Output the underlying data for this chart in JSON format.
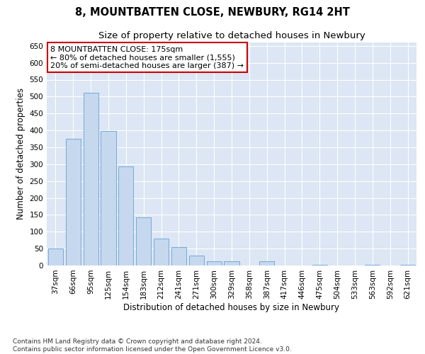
{
  "title": "8, MOUNTBATTEN CLOSE, NEWBURY, RG14 2HT",
  "subtitle": "Size of property relative to detached houses in Newbury",
  "xlabel": "Distribution of detached houses by size in Newbury",
  "ylabel": "Number of detached properties",
  "categories": [
    "37sqm",
    "66sqm",
    "95sqm",
    "125sqm",
    "154sqm",
    "183sqm",
    "212sqm",
    "241sqm",
    "271sqm",
    "300sqm",
    "329sqm",
    "358sqm",
    "387sqm",
    "417sqm",
    "446sqm",
    "475sqm",
    "504sqm",
    "533sqm",
    "563sqm",
    "592sqm",
    "621sqm"
  ],
  "values": [
    50,
    375,
    512,
    398,
    293,
    142,
    80,
    55,
    30,
    12,
    12,
    0,
    12,
    0,
    0,
    3,
    0,
    0,
    3,
    0,
    2
  ],
  "bar_color": "#c5d8ee",
  "bar_edge_color": "#6b9fd4",
  "bg_color": "#ffffff",
  "plot_bg_color": "#dce6f4",
  "annotation_text": "8 MOUNTBATTEN CLOSE: 175sqm\n← 80% of detached houses are smaller (1,555)\n20% of semi-detached houses are larger (387) →",
  "annotation_box_color": "#ffffff",
  "annotation_box_edge": "#cc0000",
  "footer_line1": "Contains HM Land Registry data © Crown copyright and database right 2024.",
  "footer_line2": "Contains public sector information licensed under the Open Government Licence v3.0.",
  "ylim": [
    0,
    660
  ],
  "yticks": [
    0,
    50,
    100,
    150,
    200,
    250,
    300,
    350,
    400,
    450,
    500,
    550,
    600,
    650
  ],
  "title_fontsize": 10.5,
  "subtitle_fontsize": 9.5,
  "axis_label_fontsize": 8.5,
  "tick_fontsize": 7.5,
  "annotation_fontsize": 8,
  "footer_fontsize": 6.5
}
